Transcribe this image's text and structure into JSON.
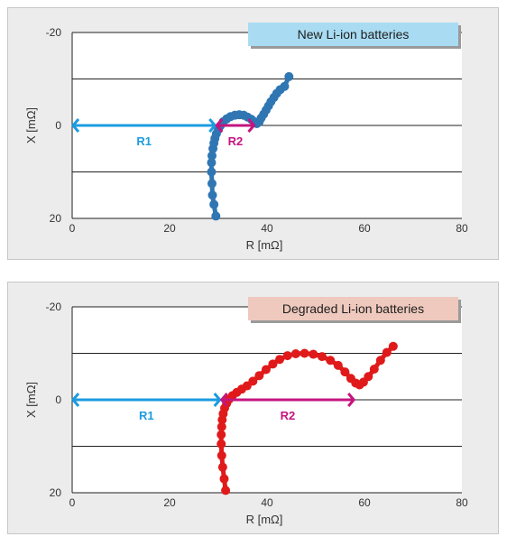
{
  "chart_data": [
    {
      "type": "scatter",
      "title": "New Li-ion batteries",
      "title_bg": "#a9dcf3",
      "xlabel": "R [mΩ]",
      "ylabel": "X [mΩ]",
      "xlim": [
        0,
        80
      ],
      "ylim": [
        -20,
        20
      ],
      "y_axis_inverted": true,
      "xticks": [
        "0",
        "20",
        "40",
        "60",
        "80"
      ],
      "yticks": [
        "-20",
        "0",
        "20"
      ],
      "grid": "horizontal",
      "series": [
        {
          "color": "#2f76b3",
          "points": [
            [
              29.5,
              19.5
            ],
            [
              29.1,
              17.0
            ],
            [
              28.8,
              15.0
            ],
            [
              28.7,
              12.5
            ],
            [
              28.6,
              10.0
            ],
            [
              28.6,
              8.0
            ],
            [
              28.7,
              6.5
            ],
            [
              28.9,
              5.0
            ],
            [
              29.1,
              3.8
            ],
            [
              29.3,
              2.8
            ],
            [
              29.6,
              1.8
            ],
            [
              30.0,
              0.9
            ],
            [
              30.4,
              0.1
            ],
            [
              31.0,
              -0.8
            ],
            [
              31.7,
              -1.4
            ],
            [
              32.5,
              -1.9
            ],
            [
              33.4,
              -2.2
            ],
            [
              34.3,
              -2.3
            ],
            [
              35.2,
              -2.2
            ],
            [
              36.0,
              -1.8
            ],
            [
              36.8,
              -1.3
            ],
            [
              37.4,
              -0.8
            ],
            [
              37.9,
              -0.4
            ],
            [
              38.4,
              -0.8
            ],
            [
              38.8,
              -1.6
            ],
            [
              39.3,
              -2.4
            ],
            [
              39.8,
              -3.3
            ],
            [
              40.3,
              -4.2
            ],
            [
              40.8,
              -5.1
            ],
            [
              41.4,
              -6.0
            ],
            [
              42.0,
              -6.9
            ],
            [
              42.7,
              -7.7
            ],
            [
              43.6,
              -8.4
            ],
            [
              44.5,
              -10.5
            ]
          ]
        }
      ],
      "annotations": [
        {
          "label": "R1",
          "from": 0,
          "to": 29.5,
          "y": 0,
          "color": "#1b9ce0"
        },
        {
          "label": "R2",
          "from": 29.5,
          "to": 37.5,
          "y": 0,
          "color": "#c4157f"
        }
      ]
    },
    {
      "type": "scatter",
      "title": "Degraded Li-ion batteries",
      "title_bg": "#efc9bd",
      "xlabel": "R [mΩ]",
      "ylabel": "X [mΩ]",
      "xlim": [
        0,
        80
      ],
      "ylim": [
        -20,
        20
      ],
      "y_axis_inverted": true,
      "xticks": [
        "0",
        "20",
        "40",
        "60",
        "80"
      ],
      "yticks": [
        "-20",
        "0",
        "20"
      ],
      "grid": "horizontal",
      "series": [
        {
          "color": "#e01a1a",
          "points": [
            [
              31.5,
              19.5
            ],
            [
              31.2,
              17.0
            ],
            [
              30.9,
              14.5
            ],
            [
              30.7,
              12.0
            ],
            [
              30.6,
              9.5
            ],
            [
              30.6,
              7.5
            ],
            [
              30.7,
              5.8
            ],
            [
              30.8,
              4.3
            ],
            [
              31.0,
              3.0
            ],
            [
              31.3,
              1.8
            ],
            [
              31.7,
              0.8
            ],
            [
              32.2,
              -0.1
            ],
            [
              32.9,
              -0.9
            ],
            [
              33.8,
              -1.6
            ],
            [
              34.8,
              -2.3
            ],
            [
              35.9,
              -3.0
            ],
            [
              37.1,
              -4.0
            ],
            [
              38.4,
              -5.2
            ],
            [
              39.8,
              -6.5
            ],
            [
              41.2,
              -7.7
            ],
            [
              42.6,
              -8.7
            ],
            [
              44.2,
              -9.5
            ],
            [
              45.9,
              -9.9
            ],
            [
              47.7,
              -10.0
            ],
            [
              49.5,
              -9.8
            ],
            [
              51.3,
              -9.3
            ],
            [
              53.0,
              -8.5
            ],
            [
              54.6,
              -7.4
            ],
            [
              56.0,
              -6.0
            ],
            [
              57.2,
              -4.6
            ],
            [
              58.2,
              -3.6
            ],
            [
              59.0,
              -3.2
            ],
            [
              59.8,
              -3.8
            ],
            [
              60.8,
              -5.0
            ],
            [
              62.0,
              -6.6
            ],
            [
              63.3,
              -8.5
            ],
            [
              64.6,
              -10.2
            ],
            [
              65.9,
              -11.5
            ]
          ]
        }
      ],
      "annotations": [
        {
          "label": "R1",
          "from": 0,
          "to": 30.5,
          "y": 0,
          "color": "#1b9ce0"
        },
        {
          "label": "R2",
          "from": 30.5,
          "to": 58.0,
          "y": 0,
          "color": "#c4157f"
        }
      ]
    }
  ]
}
